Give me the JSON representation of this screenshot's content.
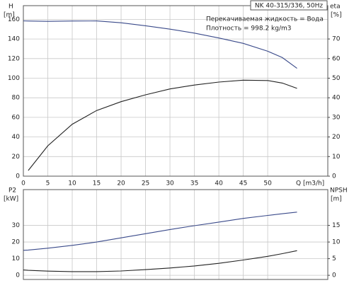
{
  "chart_data": [
    {
      "type": "line",
      "title": "NK 40-315/336, 50Hz",
      "annotations": [
        "Перекачиваемая жидкость = Вода",
        "Плотность = 998.2 kg/m3"
      ],
      "ylabel": [
        "H",
        "[m]"
      ],
      "y2label": [
        "eta",
        "[%]"
      ],
      "xlabel": "Q [m3/h]",
      "x": [
        0,
        1,
        5,
        10,
        15,
        20,
        25,
        30,
        35,
        40,
        45,
        50,
        53,
        56
      ],
      "xlim": [
        0,
        62.3
      ],
      "xticks": [
        0,
        5,
        10,
        15,
        20,
        25,
        30,
        35,
        40,
        45,
        50
      ],
      "xtick_labels": true,
      "ylim": [
        0,
        174
      ],
      "yticks": [
        0,
        20,
        40,
        60,
        80,
        100,
        120,
        140,
        160
      ],
      "y2lim": [
        0,
        87
      ],
      "y2ticks": [
        0,
        10,
        20,
        30,
        40,
        50,
        60,
        70
      ],
      "grid": true,
      "series": [
        {
          "color": "#3a4a8a",
          "values": [
            158.5,
            158.3,
            158,
            158.3,
            158.4,
            156.5,
            153.5,
            150,
            146,
            141,
            135.5,
            127.5,
            121,
            110
          ]
        },
        {
          "color": "#222222",
          "axis": "y2",
          "values": [
            null,
            2.9,
            15.5,
            26.5,
            33.5,
            38,
            41.5,
            44.5,
            46.5,
            48,
            49,
            48.8,
            47.5,
            44.8
          ]
        }
      ]
    },
    {
      "type": "line",
      "ylabel": [
        "P2",
        "[kW]"
      ],
      "y2label": [
        "NPSH",
        "[m]"
      ],
      "x": [
        0,
        1,
        5,
        10,
        15,
        20,
        25,
        30,
        35,
        40,
        45,
        50,
        53,
        56
      ],
      "xlim": [
        0,
        62.3
      ],
      "xticks": [
        0,
        5,
        10,
        15,
        20,
        25,
        30,
        35,
        40,
        45,
        50
      ],
      "xtick_labels": false,
      "ylim": [
        -2.5,
        51.5
      ],
      "yticks": [
        0,
        10,
        20,
        30
      ],
      "y2lim": [
        -1.25,
        25.75
      ],
      "y2ticks": [
        0,
        5,
        10,
        15
      ],
      "grid": true,
      "series": [
        {
          "color": "#3a4a8a",
          "values": [
            15,
            15.2,
            16.3,
            18,
            20,
            22.5,
            25,
            27.5,
            29.8,
            32,
            34.2,
            36,
            37,
            38
          ]
        },
        {
          "color": "#222222",
          "axis": "y2",
          "values": [
            1.6,
            1.5,
            1.25,
            1.1,
            1.1,
            1.3,
            1.7,
            2.2,
            2.8,
            3.6,
            4.6,
            5.7,
            6.5,
            7.4
          ]
        }
      ]
    }
  ]
}
